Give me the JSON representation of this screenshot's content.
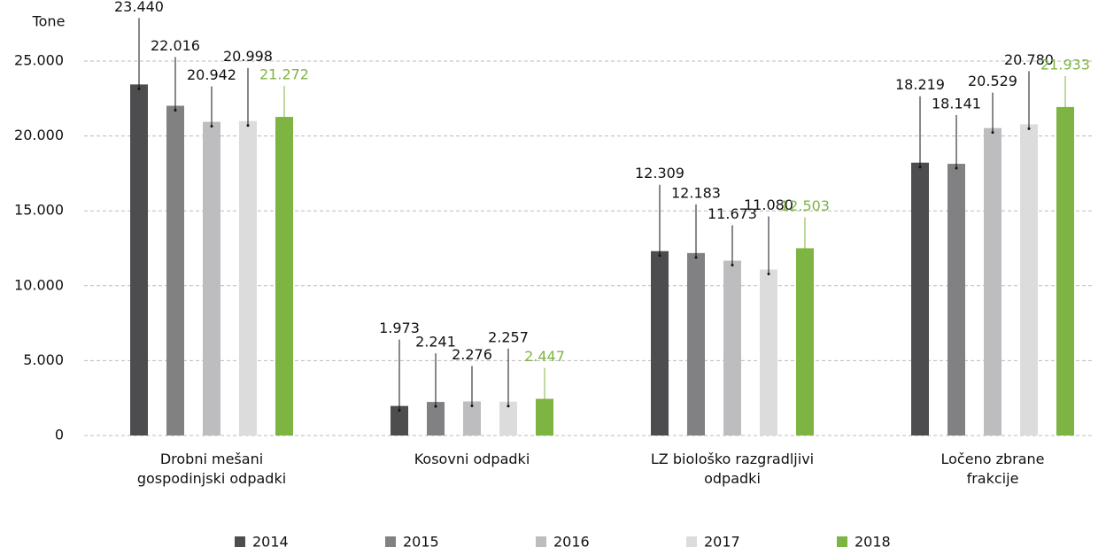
{
  "chart_data": {
    "type": "bar",
    "y_label": "Tone",
    "categories": [
      "Drobni mešani\ngospodinjski odpadki",
      "Kosovni odpadki",
      "LZ biološko razgradljivi\nodpadki",
      "Ločeno zbrane\nfrakcije"
    ],
    "series": [
      {
        "name": "2014",
        "color": "#4d4d4f",
        "values": [
          23440,
          1973,
          12309,
          18219
        ],
        "value_labels": [
          "23.440",
          "1.973",
          "12.309",
          "18.219"
        ]
      },
      {
        "name": "2015",
        "color": "#818184",
        "values": [
          22016,
          2241,
          12183,
          18141
        ],
        "value_labels": [
          "22.016",
          "2.241",
          "12.183",
          "18.141"
        ]
      },
      {
        "name": "2016",
        "color": "#bdbdbf",
        "values": [
          20942,
          2276,
          11673,
          20529
        ],
        "value_labels": [
          "20.942",
          "2.276",
          "11.673",
          "20.529"
        ]
      },
      {
        "name": "2017",
        "color": "#dcdcdd",
        "values": [
          20998,
          2257,
          11080,
          20780
        ],
        "value_labels": [
          "20.998",
          "2.257",
          "11.080",
          "20.780"
        ]
      },
      {
        "name": "2018",
        "color": "#7db442",
        "values": [
          21272,
          2447,
          12503,
          21933
        ],
        "value_labels": [
          "21.272",
          "2.447",
          "12.503",
          "21.933"
        ]
      }
    ],
    "ylim": [
      0,
      25000
    ],
    "yticks": [
      0,
      {
        "value": 5000,
        "label": "5.000"
      },
      {
        "value": 10000,
        "label": "10.000"
      },
      {
        "value": 15000,
        "label": "15.000"
      },
      {
        "value": 20000,
        "label": "20.000"
      },
      {
        "value": 25000,
        "label": "25.000"
      }
    ],
    "grid": true,
    "legend": "bottom"
  }
}
